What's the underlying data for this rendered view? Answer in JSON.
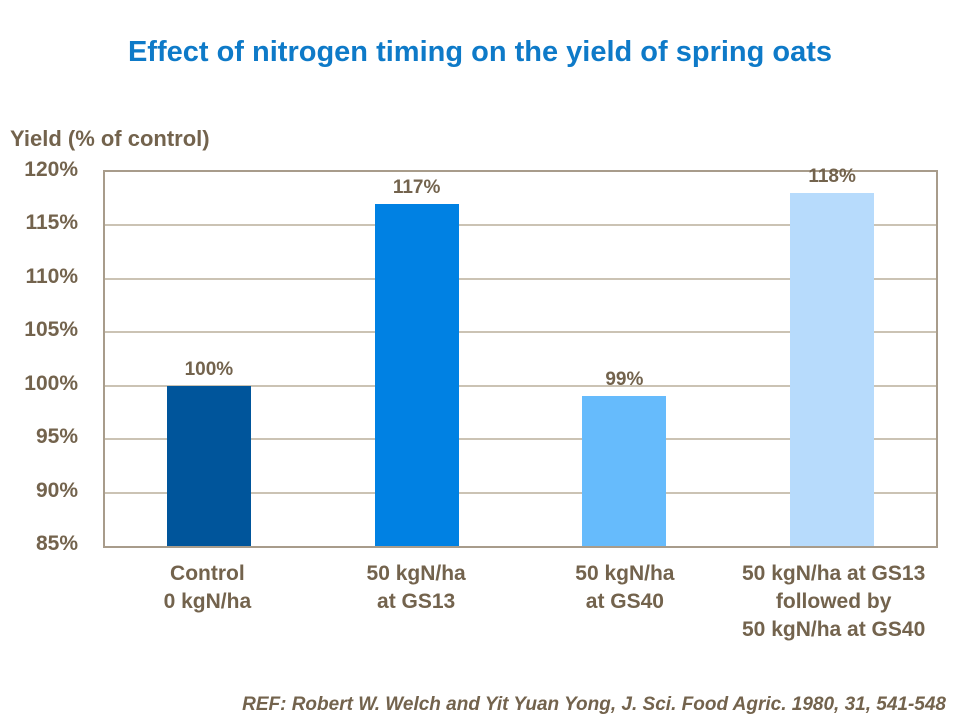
{
  "title": "Effect of nitrogen timing on the yield of spring oats",
  "y_axis_title": "Yield (% of control)",
  "reference": "REF: Robert W. Welch and Yit Yuan Yong, J. Sci. Food Agric. 1980, 31, 541-548",
  "colors": {
    "title_blue": "#0E7AC8",
    "text_brown": "#73634D",
    "gridline": "#CBC3B4",
    "plot_border": "#A89C8B",
    "background": "#FFFFFF"
  },
  "chart_data": {
    "type": "bar",
    "title": "Effect of nitrogen timing on the yield of spring oats",
    "ylabel": "Yield (% of control)",
    "xlabel": "",
    "categories": [
      "Control\n0 kgN/ha",
      "50 kgN/ha\nat GS13",
      "50 kgN/ha\nat GS40",
      "50 kgN/ha at GS13\nfollowed by\n50 kgN/ha at GS40"
    ],
    "values": [
      100,
      117,
      99,
      118
    ],
    "data_labels": [
      "100%",
      "117%",
      "99%",
      "118%"
    ],
    "bar_colors": [
      "#00559B",
      "#0081E3",
      "#66BBFC",
      "#B7DBFC"
    ],
    "ylim": [
      85,
      120
    ],
    "yticks": [
      {
        "label": "120%",
        "value": 120
      },
      {
        "label": "115%",
        "value": 115
      },
      {
        "label": "110%",
        "value": 110
      },
      {
        "label": "105%",
        "value": 105
      },
      {
        "label": "100%",
        "value": 100
      },
      {
        "label": "95%",
        "value": 95
      },
      {
        "label": "90%",
        "value": 90
      },
      {
        "label": "85%",
        "value": 85
      }
    ],
    "grid": true,
    "legend": false
  }
}
